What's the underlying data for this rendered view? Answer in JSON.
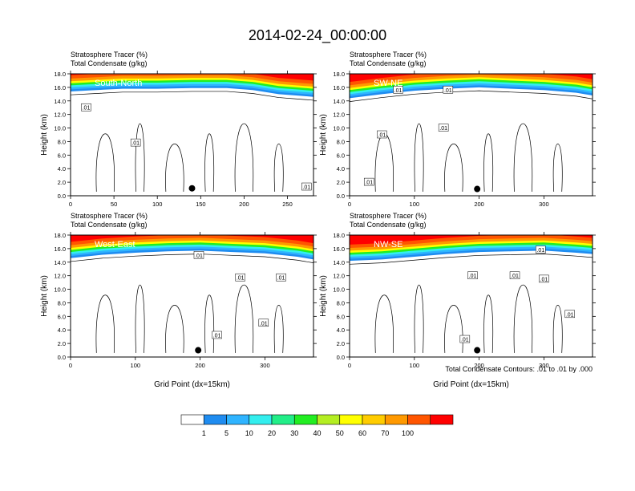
{
  "page": {
    "title": "2014-02-24_00:00:00",
    "footnote": "Total Condensate Contours: .01 to .01 by .000"
  },
  "chart_data": [
    {
      "type": "heatmap",
      "panel_label": "South-North",
      "header_line1": "Stratosphere Tracer   (%)",
      "header_line2": "Total Condensate   (g/kg)",
      "ylabel": "Height (km)",
      "xlabel": "",
      "xlim": [
        0,
        280
      ],
      "ylim": [
        0,
        18
      ],
      "xticks": [
        0,
        50,
        100,
        150,
        200,
        250
      ],
      "yticks": [
        0,
        2,
        4,
        6,
        8,
        10,
        12,
        14,
        16,
        18
      ],
      "ytick_labels": [
        "0.0",
        "2.0",
        "4.0",
        "6.0",
        "8.0",
        "10.0",
        "12.0",
        "14.0",
        "16.0",
        "18.0"
      ],
      "tropopause": {
        "x": [
          0,
          30,
          60,
          100,
          140,
          180,
          210,
          240,
          260,
          280
        ],
        "y": [
          16.2,
          16.4,
          16.6,
          16.6,
          16.7,
          16.7,
          16.4,
          15.8,
          15.6,
          15.4
        ]
      },
      "marker": {
        "x": 140,
        "y": 1.1
      },
      "contour_labels": [
        {
          "text": ".01",
          "x": 18,
          "y": 13.0
        },
        {
          "text": ".01",
          "x": 75,
          "y": 7.8
        },
        {
          "text": ".01",
          "x": 272,
          "y": 1.3
        }
      ]
    },
    {
      "type": "heatmap",
      "panel_label": "SW-NE",
      "header_line1": "Stratosphere Tracer   (%)",
      "header_line2": "Total Condensate   (g/kg)",
      "ylabel": "Height (km)",
      "xlabel": "",
      "xlim": [
        0,
        375
      ],
      "ylim": [
        0,
        18
      ],
      "xticks": [
        0,
        100,
        200,
        300
      ],
      "yticks": [
        0,
        2,
        4,
        6,
        8,
        10,
        12,
        14,
        16,
        18
      ],
      "ytick_labels": [
        "0.0",
        "2.0",
        "4.0",
        "6.0",
        "8.0",
        "10.0",
        "12.0",
        "14.0",
        "16.0",
        "18.0"
      ],
      "tropopause": {
        "x": [
          0,
          50,
          100,
          150,
          200,
          250,
          300,
          350,
          375
        ],
        "y": [
          15.2,
          15.8,
          16.3,
          16.6,
          16.8,
          16.6,
          16.4,
          16.0,
          15.6
        ]
      },
      "marker": {
        "x": 197,
        "y": 1.0
      },
      "contour_labels": [
        {
          "text": ".01",
          "x": 75,
          "y": 15.6
        },
        {
          "text": ".01",
          "x": 152,
          "y": 15.6
        },
        {
          "text": ".01",
          "x": 50,
          "y": 9.0
        },
        {
          "text": ".01",
          "x": 145,
          "y": 10.0
        },
        {
          "text": ".01",
          "x": 30,
          "y": 2.0
        }
      ]
    },
    {
      "type": "heatmap",
      "panel_label": "West-East",
      "header_line1": "Stratosphere Tracer   (%)",
      "header_line2": "Total Condensate   (g/kg)",
      "ylabel": "Height (km)",
      "xlabel": "Grid Point (dx=15km)",
      "xlim": [
        0,
        375
      ],
      "ylim": [
        0,
        18
      ],
      "xticks": [
        0,
        100,
        200,
        300
      ],
      "yticks": [
        0,
        2,
        4,
        6,
        8,
        10,
        12,
        14,
        16,
        18
      ],
      "ytick_labels": [
        "0.0",
        "2.0",
        "4.0",
        "6.0",
        "8.0",
        "10.0",
        "12.0",
        "14.0",
        "16.0",
        "18.0"
      ],
      "tropopause": {
        "x": [
          0,
          50,
          100,
          150,
          200,
          250,
          300,
          350,
          375
        ],
        "y": [
          15.4,
          15.9,
          16.2,
          16.4,
          16.5,
          16.3,
          16.1,
          15.6,
          15.2
        ]
      },
      "marker": {
        "x": 197,
        "y": 1.0
      },
      "contour_labels": [
        {
          "text": ".01",
          "x": 198,
          "y": 15.0
        },
        {
          "text": ".01",
          "x": 262,
          "y": 11.7
        },
        {
          "text": ".01",
          "x": 325,
          "y": 11.7
        },
        {
          "text": ".01",
          "x": 298,
          "y": 5.0
        },
        {
          "text": ".01",
          "x": 226,
          "y": 3.2
        }
      ]
    },
    {
      "type": "heatmap",
      "panel_label": "NW-SE",
      "header_line1": "Stratosphere Tracer   (%)",
      "header_line2": "Total Condensate   (g/kg)",
      "ylabel": "Height (km)",
      "xlabel": "Grid Point (dx=15km)",
      "xlim": [
        0,
        375
      ],
      "ylim": [
        0,
        18
      ],
      "xticks": [
        0,
        100,
        200,
        300
      ],
      "yticks": [
        0,
        2,
        4,
        6,
        8,
        10,
        12,
        14,
        16,
        18
      ],
      "ytick_labels": [
        "0.0",
        "2.0",
        "4.0",
        "6.0",
        "8.0",
        "10.0",
        "12.0",
        "14.0",
        "16.0",
        "18.0"
      ],
      "tropopause": {
        "x": [
          0,
          50,
          100,
          150,
          200,
          250,
          300,
          350,
          375
        ],
        "y": [
          15.0,
          15.2,
          15.6,
          16.0,
          16.3,
          16.4,
          16.5,
          16.2,
          16.0
        ]
      },
      "marker": {
        "x": 197,
        "y": 1.0
      },
      "contour_labels": [
        {
          "text": ".01",
          "x": 295,
          "y": 15.8
        },
        {
          "text": ".01",
          "x": 190,
          "y": 12.0
        },
        {
          "text": ".01",
          "x": 300,
          "y": 11.5
        },
        {
          "text": ".01",
          "x": 255,
          "y": 12.0
        },
        {
          "text": ".01",
          "x": 340,
          "y": 6.3
        },
        {
          "text": ".01",
          "x": 178,
          "y": 2.6
        }
      ]
    }
  ],
  "colorbar": {
    "colors": [
      "#ffffff",
      "#1f8cf0",
      "#2fb4ff",
      "#33eeee",
      "#22ee88",
      "#22ee22",
      "#b4ee22",
      "#ffff00",
      "#ffcc00",
      "#ff9900",
      "#ff5500",
      "#ff0000"
    ],
    "labels": [
      "1",
      "5",
      "10",
      "20",
      "30",
      "40",
      "50",
      "60",
      "70",
      "100"
    ]
  }
}
